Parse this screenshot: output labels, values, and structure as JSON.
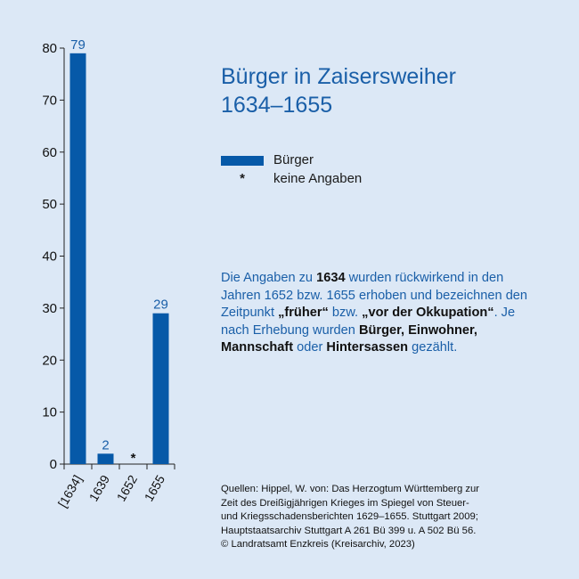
{
  "title": {
    "line1": "Bürger in Zaisersweiher",
    "line2": "1634–1655"
  },
  "legend": {
    "series_label": "Bürger",
    "star_symbol": "*",
    "star_label": "keine Angaben"
  },
  "note": {
    "p1": "Die Angaben zu ",
    "b1": "1634",
    "p2": " wurden rückwirkend in den Jahren 1652 bzw. 1655 erhoben und bezeichnen den Zeitpunkt ",
    "b2": "„früher“",
    "p3": " bzw. ",
    "b3": "„vor der Okkupation“",
    "p4": ". Je nach Erhebung wurden ",
    "b4": "Bürger, Einwohner, Mannschaft",
    "p5": " oder ",
    "b5": "Hintersassen",
    "p6": " gezählt."
  },
  "sources": {
    "line1": "Quellen: Hippel, W. von: Das Herzogtum Württemberg zur",
    "line2": "Zeit des Dreißigjährigen Krieges im Spiegel von Steuer-",
    "line3": "und Kriegsschadensberichten 1629–1655. Stuttgart 2009;",
    "line4": "Hauptstaatsarchiv Stuttgart A 261 Bü 399 u. A 502 Bü 56.",
    "line5": "© Landratsamt Enzkreis (Kreisarchiv, 2023)"
  },
  "colors": {
    "bar": "#0659a8",
    "accent_text": "#1a5fa8",
    "background": "#dce8f6"
  },
  "chart_data": {
    "type": "bar",
    "categories": [
      "[1634]",
      "1639",
      "1652",
      "1655"
    ],
    "values": [
      79,
      2,
      null,
      29
    ],
    "data_labels": [
      "79",
      "2",
      "*",
      "29"
    ],
    "ylim": [
      0,
      80
    ],
    "yticks": [
      0,
      10,
      20,
      30,
      40,
      50,
      60,
      70,
      80
    ],
    "grid": false,
    "legend_position": "right"
  }
}
